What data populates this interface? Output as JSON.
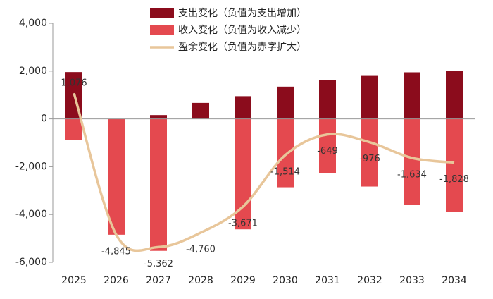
{
  "chart_data": {
    "type": "bar-line",
    "categories": [
      "2025",
      "2026",
      "2027",
      "2028",
      "2029",
      "2030",
      "2031",
      "2032",
      "2033",
      "2034"
    ],
    "series": [
      {
        "name": "支出变化（负值为支出增加）",
        "kind": "bar",
        "color": "#8b0c1c",
        "values": [
          1960,
          null,
          160,
          670,
          950,
          1350,
          1620,
          1800,
          1950,
          2010
        ]
      },
      {
        "name": "收入变化（负值为收入减少）",
        "kind": "bar",
        "color": "#e4494f",
        "values": [
          -890,
          -4845,
          -5520,
          null,
          -4620,
          -2860,
          -2270,
          -2830,
          -3600,
          -3880
        ]
      },
      {
        "name": "盈余变化（负值为赤字扩大）",
        "kind": "line",
        "color": "#e8c69a",
        "values": [
          1076,
          -4845,
          -5362,
          -4760,
          -3671,
          -1514,
          -649,
          -976,
          -1634,
          -1828
        ],
        "value_labels": [
          "1,076",
          "-4,845",
          "-5,362",
          "-4,760",
          "-3,671",
          "-1,514",
          "-649",
          "-976",
          "-1,634",
          "-1,828"
        ]
      }
    ],
    "ylim": [
      -6000,
      4000
    ],
    "yticks": [
      {
        "value": -6000,
        "label": "-6,000"
      },
      {
        "value": -4000,
        "label": "-4,000"
      },
      {
        "value": -2000,
        "label": "-2,000"
      },
      0,
      {
        "value": 2000,
        "label": "2,000"
      },
      {
        "value": 4000,
        "label": "4,000"
      }
    ]
  }
}
